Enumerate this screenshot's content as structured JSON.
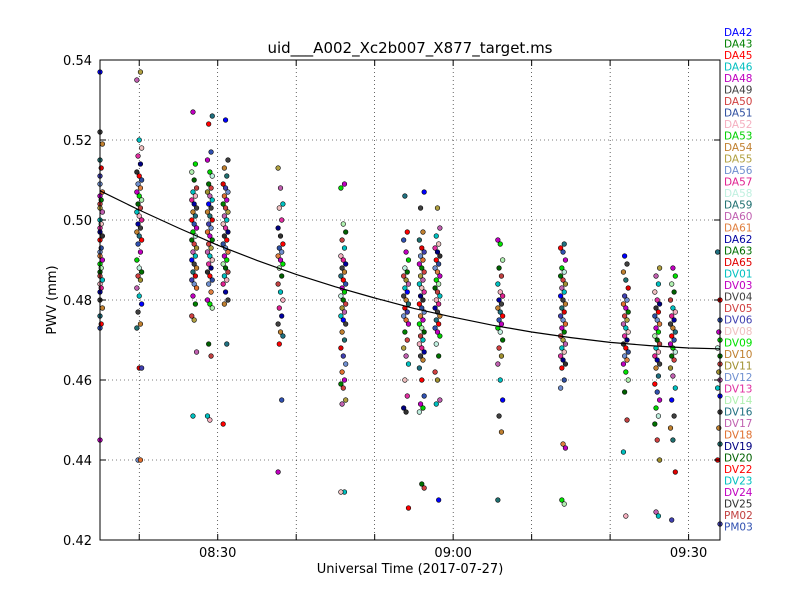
{
  "chart_data": {
    "type": "scatter",
    "title": "uid___A002_Xc2b007_X877_target.ms",
    "xlabel": "Universal Time (2017-07-27)",
    "ylabel": "PWV (mm)",
    "xlim": [
      "08:15",
      "09:34"
    ],
    "ylim": [
      0.42,
      0.54
    ],
    "x_ticks": [
      "08:30",
      "09:00",
      "09:30"
    ],
    "y_ticks": [
      "0.42",
      "0.44",
      "0.46",
      "0.48",
      "0.50",
      "0.52",
      "0.54"
    ],
    "grid": true,
    "legend_placement": "right outside",
    "fit_curve": {
      "x": [
        "08:15",
        "08:20",
        "08:25",
        "08:30",
        "08:35",
        "08:40",
        "08:45",
        "08:50",
        "08:55",
        "09:00",
        "09:05",
        "09:10",
        "09:15",
        "09:20",
        "09:25",
        "09:30",
        "09:34"
      ],
      "y": [
        0.5073,
        0.5025,
        0.498,
        0.4937,
        0.4899,
        0.4864,
        0.4833,
        0.4805,
        0.4779,
        0.4757,
        0.4737,
        0.472,
        0.4706,
        0.4694,
        0.4686,
        0.468,
        0.4678
      ]
    },
    "scans": [
      {
        "time": "08:15",
        "pwv": [
          0.537,
          0.522,
          0.519,
          0.515,
          0.513,
          0.511,
          0.509,
          0.507,
          0.506,
          0.505,
          0.504,
          0.503,
          0.502,
          0.5,
          0.499,
          0.498,
          0.497,
          0.496,
          0.495,
          0.493,
          0.492,
          0.491,
          0.49,
          0.489,
          0.488,
          0.487,
          0.486,
          0.485,
          0.484,
          0.483,
          0.482,
          0.48,
          0.478,
          0.476,
          0.474,
          0.473,
          0.445
        ]
      },
      {
        "time": "08:20",
        "pwv": [
          0.537,
          0.535,
          0.52,
          0.518,
          0.516,
          0.514,
          0.512,
          0.511,
          0.51,
          0.509,
          0.508,
          0.507,
          0.506,
          0.505,
          0.504,
          0.503,
          0.502,
          0.501,
          0.5,
          0.499,
          0.498,
          0.497,
          0.496,
          0.495,
          0.494,
          0.492,
          0.49,
          0.488,
          0.487,
          0.486,
          0.485,
          0.483,
          0.481,
          0.479,
          0.477,
          0.474,
          0.473,
          0.463,
          0.463,
          0.44,
          0.44
        ]
      },
      {
        "time": "08:27",
        "pwv": [
          0.527,
          0.514,
          0.512,
          0.51,
          0.508,
          0.507,
          0.506,
          0.505,
          0.504,
          0.503,
          0.502,
          0.501,
          0.5,
          0.499,
          0.498,
          0.497,
          0.496,
          0.495,
          0.494,
          0.493,
          0.492,
          0.491,
          0.49,
          0.489,
          0.488,
          0.487,
          0.486,
          0.485,
          0.484,
          0.483,
          0.481,
          0.479,
          0.476,
          0.475,
          0.467,
          0.451
        ]
      },
      {
        "time": "08:29",
        "pwv": [
          0.526,
          0.524,
          0.517,
          0.515,
          0.512,
          0.511,
          0.509,
          0.508,
          0.507,
          0.506,
          0.505,
          0.504,
          0.503,
          0.502,
          0.501,
          0.5,
          0.499,
          0.498,
          0.497,
          0.496,
          0.495,
          0.494,
          0.493,
          0.492,
          0.491,
          0.49,
          0.489,
          0.488,
          0.487,
          0.486,
          0.485,
          0.484,
          0.482,
          0.48,
          0.479,
          0.478,
          0.469,
          0.466,
          0.451,
          0.45
        ]
      },
      {
        "time": "08:31",
        "pwv": [
          0.525,
          0.515,
          0.513,
          0.511,
          0.509,
          0.508,
          0.507,
          0.506,
          0.505,
          0.504,
          0.503,
          0.502,
          0.501,
          0.5,
          0.499,
          0.498,
          0.497,
          0.496,
          0.495,
          0.494,
          0.493,
          0.492,
          0.491,
          0.49,
          0.489,
          0.488,
          0.487,
          0.486,
          0.485,
          0.484,
          0.482,
          0.48,
          0.479,
          0.469,
          0.449
        ]
      },
      {
        "time": "08:38",
        "pwv": [
          0.513,
          0.508,
          0.504,
          0.503,
          0.5,
          0.498,
          0.496,
          0.494,
          0.493,
          0.492,
          0.491,
          0.49,
          0.489,
          0.488,
          0.486,
          0.484,
          0.482,
          0.48,
          0.478,
          0.476,
          0.474,
          0.472,
          0.471,
          0.469,
          0.455,
          0.437
        ]
      },
      {
        "time": "08:46",
        "pwv": [
          0.509,
          0.508,
          0.499,
          0.497,
          0.495,
          0.493,
          0.491,
          0.49,
          0.489,
          0.488,
          0.487,
          0.486,
          0.485,
          0.484,
          0.483,
          0.482,
          0.481,
          0.48,
          0.479,
          0.478,
          0.477,
          0.476,
          0.475,
          0.474,
          0.472,
          0.47,
          0.468,
          0.466,
          0.464,
          0.462,
          0.46,
          0.459,
          0.458,
          0.455,
          0.454,
          0.432,
          0.432
        ]
      },
      {
        "time": "08:54",
        "pwv": [
          0.506,
          0.497,
          0.495,
          0.492,
          0.49,
          0.488,
          0.487,
          0.486,
          0.485,
          0.484,
          0.483,
          0.482,
          0.481,
          0.48,
          0.479,
          0.478,
          0.477,
          0.476,
          0.475,
          0.474,
          0.472,
          0.47,
          0.468,
          0.466,
          0.464,
          0.46,
          0.456,
          0.453,
          0.452,
          0.428
        ]
      },
      {
        "time": "08:56",
        "pwv": [
          0.507,
          0.503,
          0.497,
          0.495,
          0.493,
          0.492,
          0.491,
          0.49,
          0.489,
          0.488,
          0.487,
          0.486,
          0.485,
          0.484,
          0.483,
          0.482,
          0.481,
          0.48,
          0.479,
          0.478,
          0.477,
          0.476,
          0.475,
          0.474,
          0.473,
          0.472,
          0.471,
          0.47,
          0.469,
          0.468,
          0.467,
          0.466,
          0.465,
          0.463,
          0.46,
          0.456,
          0.454,
          0.453,
          0.452,
          0.434,
          0.433
        ]
      },
      {
        "time": "08:58",
        "pwv": [
          0.503,
          0.498,
          0.496,
          0.494,
          0.493,
          0.492,
          0.491,
          0.49,
          0.489,
          0.488,
          0.487,
          0.486,
          0.485,
          0.484,
          0.483,
          0.482,
          0.481,
          0.48,
          0.479,
          0.478,
          0.477,
          0.476,
          0.475,
          0.474,
          0.473,
          0.472,
          0.471,
          0.469,
          0.466,
          0.462,
          0.46,
          0.455,
          0.454,
          0.43
        ]
      },
      {
        "time": "09:06",
        "pwv": [
          0.495,
          0.494,
          0.49,
          0.488,
          0.486,
          0.484,
          0.482,
          0.481,
          0.48,
          0.479,
          0.478,
          0.477,
          0.476,
          0.475,
          0.474,
          0.473,
          0.472,
          0.47,
          0.468,
          0.466,
          0.464,
          0.46,
          0.455,
          0.451,
          0.447,
          0.43
        ]
      },
      {
        "time": "09:14",
        "pwv": [
          0.494,
          0.493,
          0.492,
          0.49,
          0.488,
          0.487,
          0.486,
          0.485,
          0.484,
          0.483,
          0.482,
          0.481,
          0.48,
          0.479,
          0.478,
          0.477,
          0.476,
          0.475,
          0.474,
          0.473,
          0.472,
          0.471,
          0.47,
          0.469,
          0.468,
          0.467,
          0.466,
          0.465,
          0.464,
          0.463,
          0.46,
          0.458,
          0.444,
          0.443,
          0.43,
          0.429
        ]
      },
      {
        "time": "09:22",
        "pwv": [
          0.491,
          0.489,
          0.487,
          0.485,
          0.483,
          0.481,
          0.48,
          0.479,
          0.478,
          0.477,
          0.476,
          0.475,
          0.474,
          0.473,
          0.472,
          0.471,
          0.47,
          0.469,
          0.468,
          0.467,
          0.466,
          0.465,
          0.464,
          0.462,
          0.46,
          0.457,
          0.45,
          0.442,
          0.426
        ]
      },
      {
        "time": "09:26",
        "pwv": [
          0.488,
          0.486,
          0.484,
          0.482,
          0.48,
          0.479,
          0.478,
          0.477,
          0.476,
          0.475,
          0.474,
          0.473,
          0.472,
          0.471,
          0.47,
          0.469,
          0.468,
          0.467,
          0.466,
          0.465,
          0.464,
          0.463,
          0.461,
          0.459,
          0.457,
          0.455,
          0.453,
          0.451,
          0.449,
          0.445,
          0.44,
          0.427,
          0.426
        ]
      },
      {
        "time": "09:28",
        "pwv": [
          0.488,
          0.486,
          0.484,
          0.482,
          0.48,
          0.478,
          0.477,
          0.476,
          0.475,
          0.474,
          0.473,
          0.472,
          0.471,
          0.47,
          0.469,
          0.468,
          0.467,
          0.466,
          0.465,
          0.463,
          0.461,
          0.458,
          0.455,
          0.451,
          0.448,
          0.445,
          0.437,
          0.425
        ]
      },
      {
        "time": "09:34",
        "pwv": [
          0.492,
          0.48,
          0.475,
          0.472,
          0.47,
          0.468,
          0.466,
          0.464,
          0.462,
          0.46,
          0.458,
          0.456,
          0.452,
          0.448,
          0.444,
          0.44,
          0.424
        ]
      }
    ]
  },
  "legend": [
    {
      "name": "DA42",
      "color": "#0000ff"
    },
    {
      "name": "DA43",
      "color": "#008000"
    },
    {
      "name": "DA45",
      "color": "#ff0000"
    },
    {
      "name": "DA46",
      "color": "#00bfbf"
    },
    {
      "name": "DA48",
      "color": "#bf00bf"
    },
    {
      "name": "DA49",
      "color": "#3f3f3f"
    },
    {
      "name": "DA50",
      "color": "#d04040"
    },
    {
      "name": "DA51",
      "color": "#2f4fa0"
    },
    {
      "name": "DA52",
      "color": "#f5b0c0"
    },
    {
      "name": "DA53",
      "color": "#00d000"
    },
    {
      "name": "DA54",
      "color": "#c08030"
    },
    {
      "name": "DA55",
      "color": "#b0a040"
    },
    {
      "name": "DA56",
      "color": "#6f8fcf"
    },
    {
      "name": "DA57",
      "color": "#e0208f"
    },
    {
      "name": "DA58",
      "color": "#c0f0e0"
    },
    {
      "name": "DA59",
      "color": "#207070"
    },
    {
      "name": "DA60",
      "color": "#c060b0"
    },
    {
      "name": "DA61",
      "color": "#e08040"
    },
    {
      "name": "DA62",
      "color": "#0000a0"
    },
    {
      "name": "DA63",
      "color": "#007000"
    },
    {
      "name": "DA65",
      "color": "#e00000"
    },
    {
      "name": "DV01",
      "color": "#00c0c0"
    },
    {
      "name": "DV03",
      "color": "#c000c0"
    },
    {
      "name": "DV04",
      "color": "#404040"
    },
    {
      "name": "DV05",
      "color": "#d04040"
    },
    {
      "name": "DV06",
      "color": "#4040b0"
    },
    {
      "name": "DV08",
      "color": "#f0c0c0"
    },
    {
      "name": "DV09",
      "color": "#00e000"
    },
    {
      "name": "DV10",
      "color": "#c08030"
    },
    {
      "name": "DV11",
      "color": "#a09030"
    },
    {
      "name": "DV12",
      "color": "#7090d0"
    },
    {
      "name": "DV13",
      "color": "#e030a0"
    },
    {
      "name": "DV14",
      "color": "#b0f0b0"
    },
    {
      "name": "DV16",
      "color": "#207080"
    },
    {
      "name": "DV17",
      "color": "#c060b0"
    },
    {
      "name": "DV18",
      "color": "#e07030"
    },
    {
      "name": "DV19",
      "color": "#000080"
    },
    {
      "name": "DV20",
      "color": "#006000"
    },
    {
      "name": "DV22",
      "color": "#ff0000"
    },
    {
      "name": "DV23",
      "color": "#00c0c0"
    },
    {
      "name": "DV24",
      "color": "#c000c0"
    },
    {
      "name": "DV25",
      "color": "#303030"
    },
    {
      "name": "PM02",
      "color": "#c04040"
    },
    {
      "name": "PM03",
      "color": "#3050b0"
    }
  ]
}
